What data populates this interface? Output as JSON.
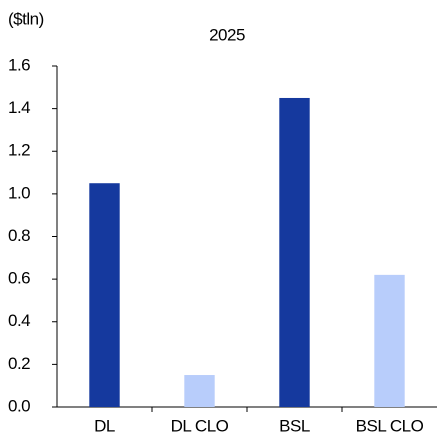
{
  "chart_data": {
    "type": "bar",
    "title": "2025",
    "y_label": "($tln)",
    "categories": [
      "DL",
      "DL CLO",
      "BSL",
      "BSL CLO"
    ],
    "values": [
      1.05,
      0.15,
      1.45,
      0.62
    ],
    "colors": [
      "#15399e",
      "#b8cdfb",
      "#15399e",
      "#b8cdfb"
    ],
    "ylim": [
      0,
      1.6
    ],
    "yticks": [
      {
        "value": 0,
        "label": "0.0"
      },
      0.2,
      0.4,
      0.6,
      0.8,
      {
        "value": 1,
        "label": "1.0"
      },
      1.2,
      1.4,
      1.6
    ],
    "grid": false
  }
}
